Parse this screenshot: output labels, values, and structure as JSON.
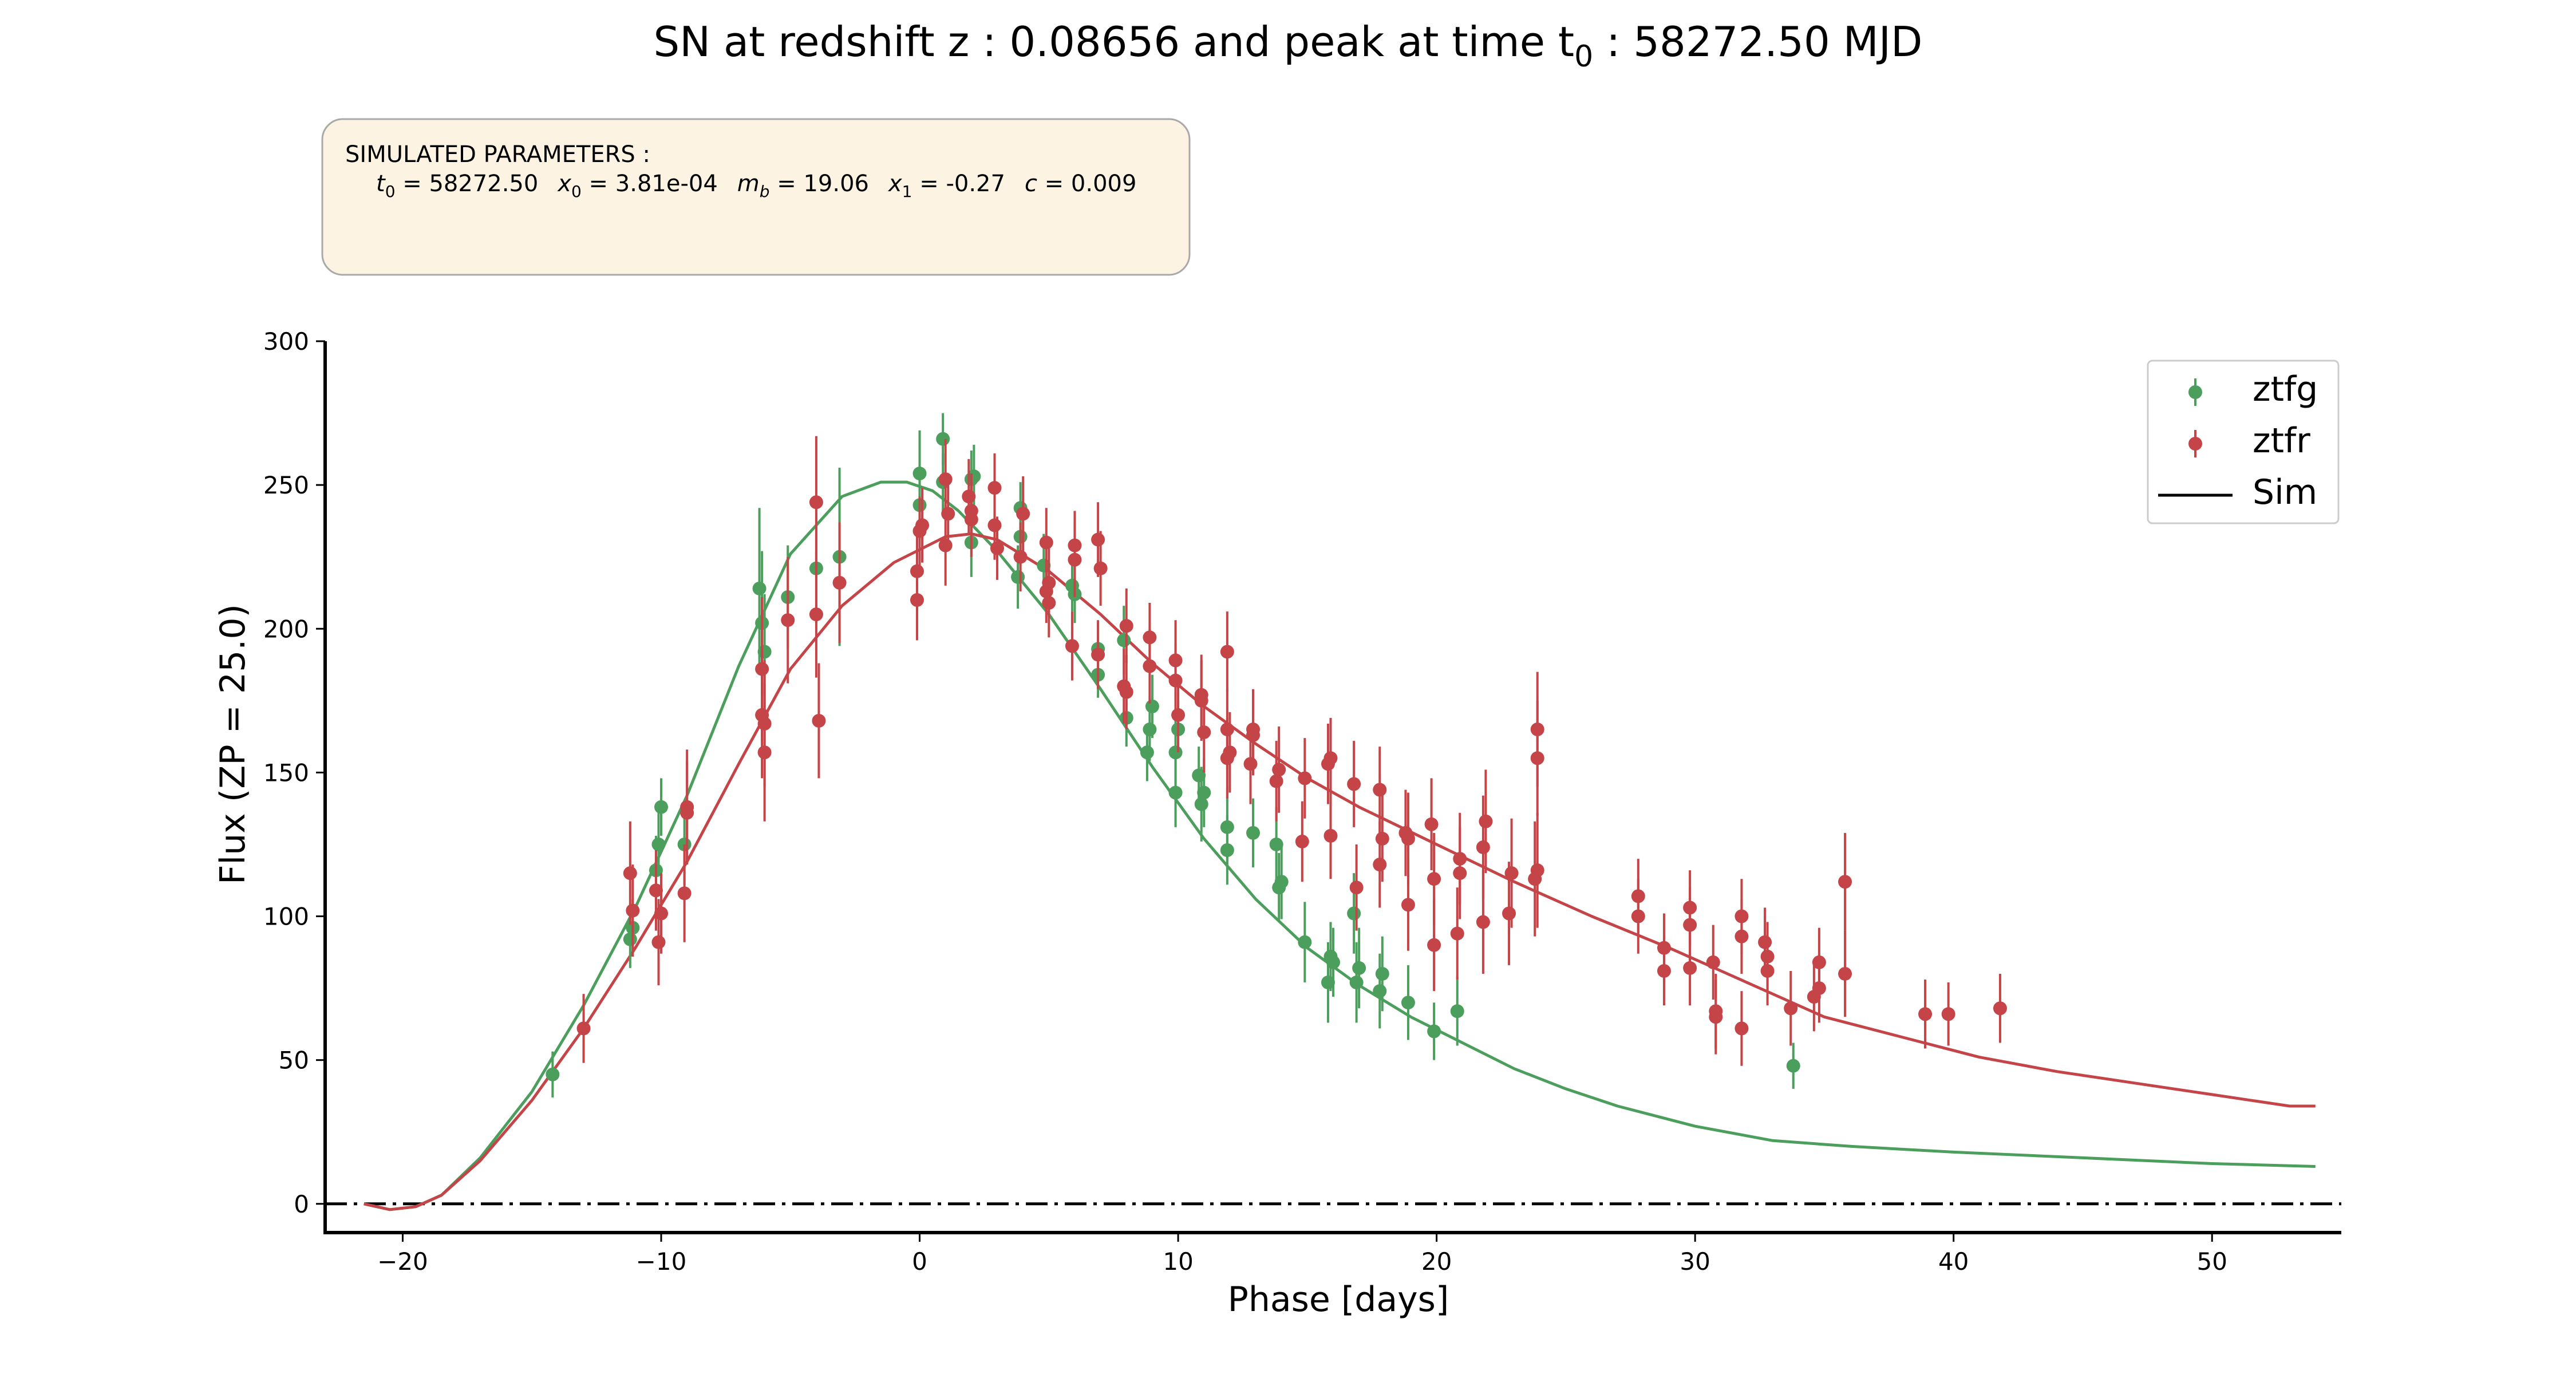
{
  "title": {
    "prefix": "SN at redshift z : 0.08656 and peak at time t",
    "sub": "0",
    "suffix": " : 58272.50 MJD"
  },
  "params_box": {
    "heading": "SIMULATED PARAMETERS :",
    "items": [
      {
        "sym": "t",
        "sub": "0",
        "value": " = 58272.50"
      },
      {
        "sym": "x",
        "sub": "0",
        "value": " = 3.81e-04"
      },
      {
        "sym": "m",
        "sub": "b",
        "value": " = 19.06"
      },
      {
        "sym": "x",
        "sub": "1",
        "value": " = -0.27"
      },
      {
        "sym": "c",
        "sub": "",
        "value": " = 0.009"
      }
    ]
  },
  "colors": {
    "ztfg": "#4c9e5c",
    "ztfr": "#c44448",
    "zero_line": "#000000",
    "box_fill": "#fdf3e3",
    "box_edge": "#a9a9a9"
  },
  "chart_data": {
    "type": "scatter",
    "title": "SN at redshift z : 0.08656 and peak at time t0 : 58272.50 MJD",
    "xlabel": "Phase [days]",
    "ylabel": "Flux (ZP = 25.0)",
    "xlim": [
      -23,
      55
    ],
    "ylim": [
      -10,
      300
    ],
    "xticks": [
      -20,
      -10,
      0,
      10,
      20,
      30,
      40,
      50
    ],
    "yticks": [
      0,
      50,
      100,
      150,
      200,
      250,
      300
    ],
    "xtick_labels": [
      "−20",
      "−10",
      "0",
      "10",
      "20",
      "30",
      "40",
      "50"
    ],
    "ytick_labels": [
      "0",
      "50",
      "100",
      "150",
      "200",
      "250",
      "300"
    ],
    "grid": false,
    "legend": {
      "position": "top-right",
      "entries": [
        {
          "label": "ztfg",
          "kind": "errorbar",
          "color": "#4c9e5c"
        },
        {
          "label": "ztfr",
          "kind": "errorbar",
          "color": "#c44448"
        },
        {
          "label": "Sim",
          "kind": "line",
          "color": "#000000"
        }
      ]
    },
    "zero_line": {
      "y": 0,
      "style": "dash-dot"
    },
    "series": [
      {
        "name": "ztfg",
        "color": "#4c9e5c",
        "points": [
          [
            -14.2,
            45,
            8
          ],
          [
            -11.2,
            92,
            10
          ],
          [
            -11.1,
            96,
            10
          ],
          [
            -10.2,
            116,
            12
          ],
          [
            -10.1,
            125,
            11
          ],
          [
            -10.0,
            138,
            10
          ],
          [
            -9.1,
            125,
            14
          ],
          [
            -6.2,
            214,
            28
          ],
          [
            -6.1,
            202,
            25
          ],
          [
            -6.0,
            192,
            20
          ],
          [
            -5.1,
            211,
            18
          ],
          [
            -4.0,
            221,
            19
          ],
          [
            -3.1,
            225,
            31
          ],
          [
            0.0,
            254,
            15
          ],
          [
            0.0,
            243,
            12
          ],
          [
            0.9,
            266,
            9
          ],
          [
            0.9,
            251,
            10
          ],
          [
            2.0,
            230,
            12
          ],
          [
            2.0,
            252,
            10
          ],
          [
            2.1,
            253,
            11
          ],
          [
            3.8,
            218,
            11
          ],
          [
            3.9,
            232,
            10
          ],
          [
            3.9,
            242,
            9
          ],
          [
            4.8,
            222,
            11
          ],
          [
            5.9,
            215,
            9
          ],
          [
            6.0,
            212,
            10
          ],
          [
            6.9,
            184,
            8
          ],
          [
            6.9,
            193,
            9
          ],
          [
            7.9,
            196,
            12
          ],
          [
            8.0,
            169,
            10
          ],
          [
            8.8,
            157,
            10
          ],
          [
            8.9,
            165,
            11
          ],
          [
            9.0,
            173,
            11
          ],
          [
            9.9,
            143,
            12
          ],
          [
            9.9,
            157,
            11
          ],
          [
            10.0,
            165,
            10
          ],
          [
            10.8,
            149,
            10
          ],
          [
            10.9,
            139,
            13
          ],
          [
            11.0,
            143,
            12
          ],
          [
            11.9,
            131,
            14
          ],
          [
            11.9,
            123,
            12
          ],
          [
            12.9,
            129,
            12
          ],
          [
            13.8,
            125,
            13
          ],
          [
            13.9,
            110,
            12
          ],
          [
            14.0,
            112,
            13
          ],
          [
            14.9,
            91,
            14
          ],
          [
            15.8,
            77,
            14
          ],
          [
            15.9,
            86,
            12
          ],
          [
            16.0,
            84,
            12
          ],
          [
            16.8,
            101,
            14
          ],
          [
            16.9,
            77,
            14
          ],
          [
            17.0,
            82,
            14
          ],
          [
            17.8,
            74,
            13
          ],
          [
            17.9,
            80,
            13
          ],
          [
            18.9,
            70,
            13
          ],
          [
            19.9,
            60,
            10
          ],
          [
            20.8,
            67,
            12
          ],
          [
            33.8,
            48,
            8
          ]
        ]
      },
      {
        "name": "ztfr",
        "color": "#c44448",
        "points": [
          [
            -13.0,
            61,
            12
          ],
          [
            -11.2,
            115,
            18
          ],
          [
            -11.1,
            102,
            16
          ],
          [
            -10.2,
            109,
            14
          ],
          [
            -10.1,
            91,
            15
          ],
          [
            -10.0,
            101,
            14
          ],
          [
            -9.1,
            108,
            17
          ],
          [
            -9.0,
            138,
            20
          ],
          [
            -9.0,
            136,
            18
          ],
          [
            -6.1,
            186,
            25
          ],
          [
            -6.1,
            170,
            22
          ],
          [
            -6.0,
            167,
            22
          ],
          [
            -6.0,
            157,
            24
          ],
          [
            -5.1,
            203,
            22
          ],
          [
            -4.0,
            244,
            23
          ],
          [
            -4.0,
            205,
            22
          ],
          [
            -3.9,
            168,
            20
          ],
          [
            -3.1,
            216,
            21
          ],
          [
            -0.1,
            210,
            14
          ],
          [
            -0.1,
            220,
            14
          ],
          [
            0.0,
            234,
            12
          ],
          [
            0.1,
            236,
            13
          ],
          [
            1.0,
            252,
            14
          ],
          [
            1.0,
            229,
            14
          ],
          [
            1.1,
            240,
            13
          ],
          [
            1.9,
            246,
            13
          ],
          [
            2.0,
            241,
            13
          ],
          [
            2.0,
            238,
            13
          ],
          [
            2.9,
            249,
            12
          ],
          [
            2.9,
            236,
            12
          ],
          [
            3.0,
            228,
            11
          ],
          [
            3.9,
            225,
            12
          ],
          [
            4.0,
            240,
            13
          ],
          [
            4.9,
            213,
            11
          ],
          [
            4.9,
            230,
            12
          ],
          [
            5.0,
            209,
            12
          ],
          [
            5.0,
            216,
            12
          ],
          [
            5.9,
            194,
            12
          ],
          [
            6.0,
            229,
            12
          ],
          [
            6.0,
            224,
            13
          ],
          [
            6.9,
            191,
            12
          ],
          [
            6.9,
            231,
            13
          ],
          [
            7.0,
            221,
            13
          ],
          [
            7.9,
            180,
            13
          ],
          [
            8.0,
            201,
            13
          ],
          [
            8.0,
            178,
            13
          ],
          [
            8.9,
            197,
            12
          ],
          [
            8.9,
            187,
            13
          ],
          [
            9.9,
            182,
            13
          ],
          [
            9.9,
            189,
            14
          ],
          [
            10.0,
            170,
            13
          ],
          [
            10.9,
            175,
            14
          ],
          [
            10.9,
            177,
            14
          ],
          [
            11.0,
            164,
            14
          ],
          [
            11.9,
            155,
            14
          ],
          [
            11.9,
            165,
            14
          ],
          [
            11.9,
            192,
            14
          ],
          [
            12.0,
            157,
            14
          ],
          [
            12.8,
            153,
            14
          ],
          [
            12.9,
            165,
            14
          ],
          [
            12.9,
            163,
            14
          ],
          [
            13.8,
            147,
            14
          ],
          [
            13.9,
            151,
            15
          ],
          [
            14.8,
            126,
            14
          ],
          [
            14.9,
            148,
            14
          ],
          [
            15.8,
            153,
            14
          ],
          [
            15.9,
            128,
            15
          ],
          [
            15.9,
            155,
            14
          ],
          [
            16.8,
            146,
            15
          ],
          [
            16.9,
            110,
            15
          ],
          [
            17.8,
            144,
            15
          ],
          [
            17.8,
            118,
            15
          ],
          [
            17.9,
            127,
            15
          ],
          [
            18.8,
            129,
            15
          ],
          [
            18.9,
            127,
            16
          ],
          [
            18.9,
            104,
            16
          ],
          [
            19.8,
            132,
            16
          ],
          [
            19.9,
            90,
            16
          ],
          [
            19.9,
            113,
            16
          ],
          [
            20.8,
            94,
            16
          ],
          [
            20.9,
            115,
            16
          ],
          [
            20.9,
            120,
            16
          ],
          [
            21.8,
            98,
            18
          ],
          [
            21.8,
            124,
            18
          ],
          [
            21.9,
            133,
            18
          ],
          [
            22.8,
            101,
            18
          ],
          [
            22.9,
            115,
            19
          ],
          [
            23.8,
            113,
            20
          ],
          [
            23.9,
            165,
            20
          ],
          [
            23.9,
            155,
            20
          ],
          [
            23.9,
            116,
            20
          ],
          [
            27.8,
            107,
            13
          ],
          [
            27.8,
            100,
            13
          ],
          [
            28.8,
            89,
            12
          ],
          [
            28.8,
            81,
            12
          ],
          [
            29.8,
            103,
            13
          ],
          [
            29.8,
            97,
            13
          ],
          [
            29.8,
            82,
            13
          ],
          [
            30.7,
            84,
            13
          ],
          [
            30.8,
            67,
            13
          ],
          [
            30.8,
            65,
            13
          ],
          [
            31.8,
            93,
            13
          ],
          [
            31.8,
            100,
            13
          ],
          [
            31.8,
            61,
            13
          ],
          [
            32.7,
            91,
            12
          ],
          [
            32.8,
            86,
            12
          ],
          [
            32.8,
            81,
            12
          ],
          [
            33.7,
            68,
            13
          ],
          [
            34.6,
            72,
            12
          ],
          [
            34.8,
            84,
            12
          ],
          [
            34.8,
            75,
            12
          ],
          [
            35.8,
            80,
            15
          ],
          [
            35.8,
            112,
            17
          ],
          [
            38.9,
            66,
            12
          ],
          [
            39.8,
            66,
            11
          ],
          [
            41.8,
            68,
            12
          ]
        ]
      },
      {
        "name": "Sim",
        "color": "#4c9e5c",
        "band": "ztfg",
        "x": [
          -21.5,
          -20.5,
          -19.5,
          -18.5,
          -17.0,
          -15.0,
          -13.0,
          -11.0,
          -9.0,
          -7.0,
          -5.0,
          -3.0,
          -1.5,
          -0.5,
          0.5,
          1.5,
          3.0,
          5.0,
          7.0,
          9.0,
          11.0,
          13.0,
          15.0,
          17.0,
          19.0,
          21.0,
          23.0,
          25.0,
          27.0,
          30.0,
          33.0,
          36.0,
          40.0,
          45.0,
          50.0,
          54.0
        ],
        "y": [
          0,
          -2,
          -1,
          3,
          16,
          39,
          69,
          103,
          142,
          187,
          226,
          246,
          251,
          251,
          248,
          241,
          227,
          205,
          179,
          152,
          127,
          106,
          89,
          76,
          65,
          56,
          47,
          40,
          34,
          27,
          22,
          20,
          18,
          16,
          14,
          13
        ]
      },
      {
        "name": "Sim",
        "color": "#c44448",
        "band": "ztfr",
        "x": [
          -21.5,
          -20.5,
          -19.5,
          -18.5,
          -17.0,
          -15.0,
          -13.0,
          -11.0,
          -9.0,
          -7.0,
          -5.0,
          -3.0,
          -1.0,
          1.0,
          2.0,
          3.0,
          5.0,
          7.0,
          9.0,
          11.0,
          13.0,
          15.0,
          17.0,
          20.0,
          23.0,
          26.0,
          29.0,
          31.0,
          33.0,
          35.0,
          38.0,
          41.0,
          44.0,
          47.0,
          50.0,
          53.0,
          54.0
        ],
        "y": [
          0,
          -2,
          -1,
          3,
          15,
          36,
          61,
          89,
          119,
          153,
          186,
          208,
          223,
          232,
          233,
          231,
          220,
          205,
          188,
          173,
          160,
          148,
          138,
          125,
          112,
          100,
          89,
          81,
          73,
          65,
          58,
          51,
          46,
          42,
          38,
          34,
          34
        ]
      }
    ]
  }
}
